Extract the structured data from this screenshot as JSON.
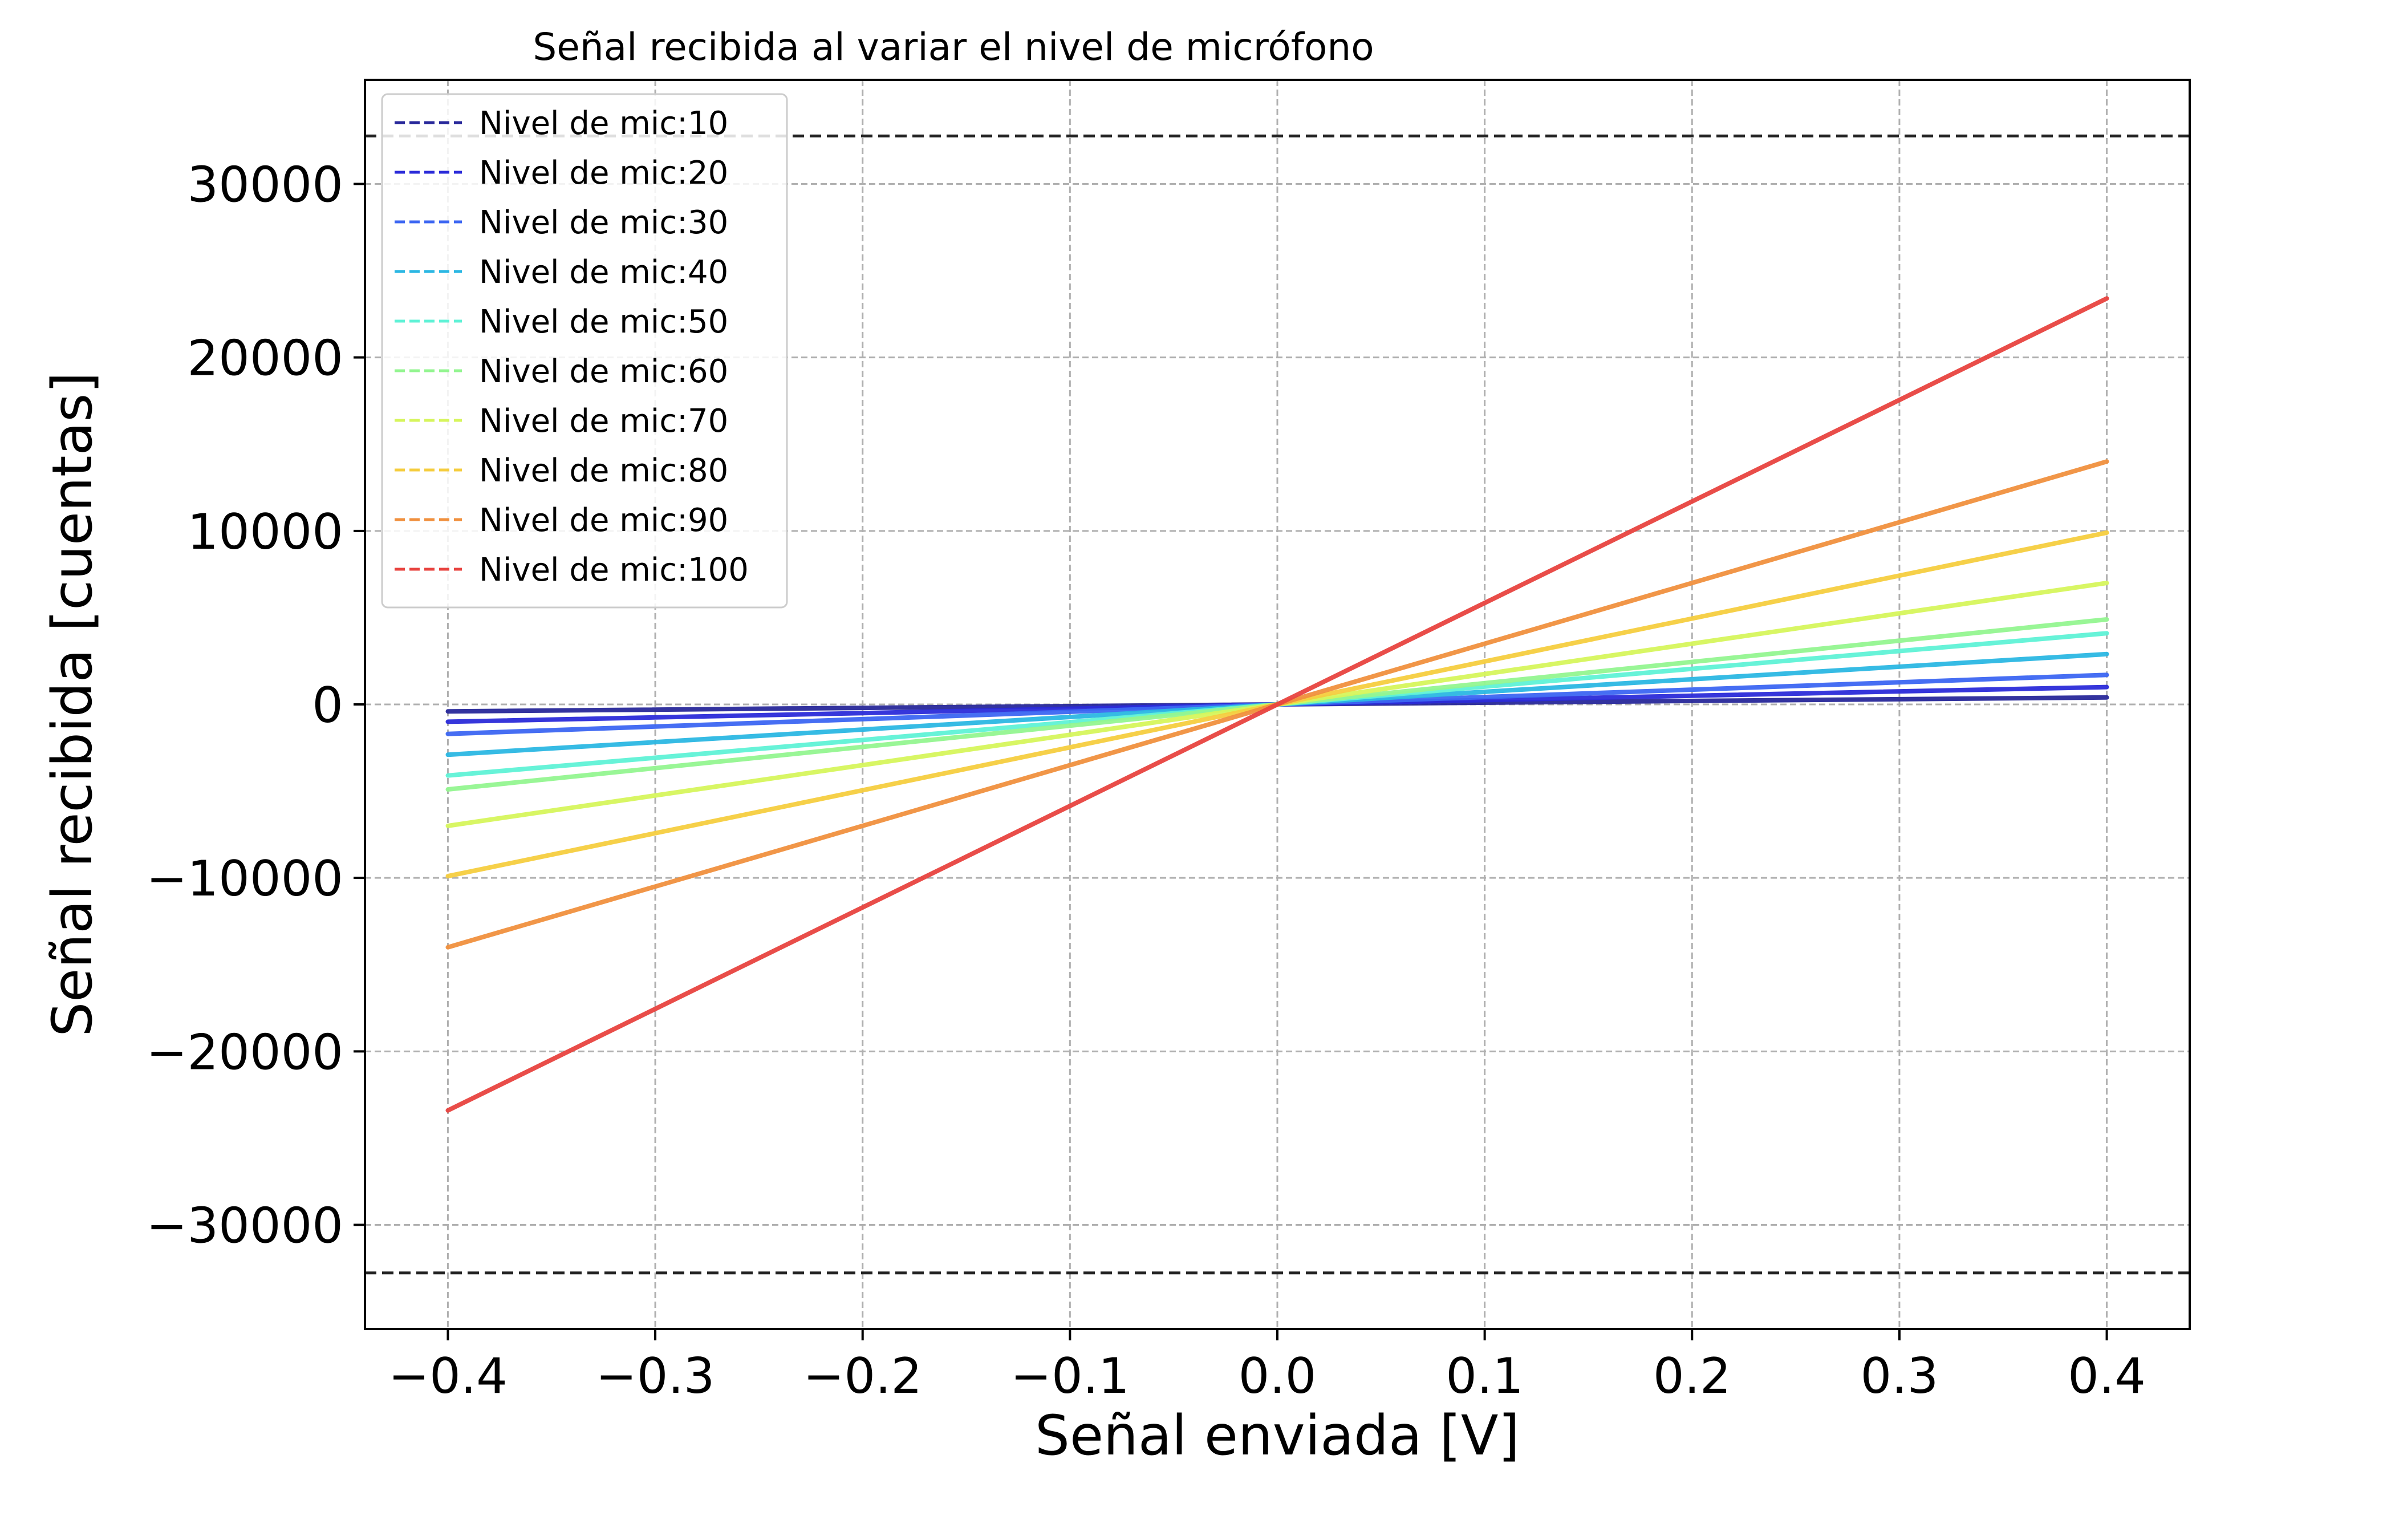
{
  "chart_data": {
    "type": "line",
    "title": "Señal recibida al variar el nivel de micrófono",
    "xlabel": "Señal enviada [V]",
    "ylabel": "Señal recibida [cuentas]",
    "xlim": [
      -0.44,
      0.44
    ],
    "ylim": [
      -36000,
      36000
    ],
    "xticks": [
      -0.4,
      -0.3,
      -0.2,
      -0.1,
      0.0,
      0.1,
      0.2,
      0.3,
      0.4
    ],
    "xtick_labels": [
      "−0.4",
      "−0.3",
      "−0.2",
      "−0.1",
      "0.0",
      "0.1",
      "0.2",
      "0.3",
      "0.4"
    ],
    "yticks": [
      -30000,
      -20000,
      -10000,
      0,
      10000,
      20000,
      30000
    ],
    "ytick_labels": [
      "−30000",
      "−20000",
      "−10000",
      "0",
      "10000",
      "20000",
      "30000"
    ],
    "grid": true,
    "legend_position": "top-left",
    "x": [
      -0.4,
      0.4
    ],
    "reference_lines": [
      {
        "y": 32767,
        "style": "dashed",
        "color": "#222222"
      },
      {
        "y": -32768,
        "style": "dashed",
        "color": "#222222"
      }
    ],
    "series": [
      {
        "name": "Nivel de mic:10",
        "values": [
          -400,
          400
        ],
        "color": "#28289a"
      },
      {
        "name": "Nivel de mic:20",
        "values": [
          -1000,
          1000
        ],
        "color": "#2b2bd9"
      },
      {
        "name": "Nivel de mic:30",
        "values": [
          -1700,
          1700
        ],
        "color": "#3c66f2"
      },
      {
        "name": "Nivel de mic:40",
        "values": [
          -2900,
          2900
        ],
        "color": "#2bb7e3"
      },
      {
        "name": "Nivel de mic:50",
        "values": [
          -4100,
          4100
        ],
        "color": "#5ff2d6"
      },
      {
        "name": "Nivel de mic:60",
        "values": [
          -4900,
          4900
        ],
        "color": "#93f590"
      },
      {
        "name": "Nivel de mic:70",
        "values": [
          -7000,
          7000
        ],
        "color": "#d6f55c"
      },
      {
        "name": "Nivel de mic:80",
        "values": [
          -9900,
          9900
        ],
        "color": "#f5cd3f"
      },
      {
        "name": "Nivel de mic:90",
        "values": [
          -14000,
          14000
        ],
        "color": "#f0903e"
      },
      {
        "name": "Nivel de mic:100",
        "values": [
          -23400,
          23400
        ],
        "color": "#e8433f"
      }
    ]
  }
}
